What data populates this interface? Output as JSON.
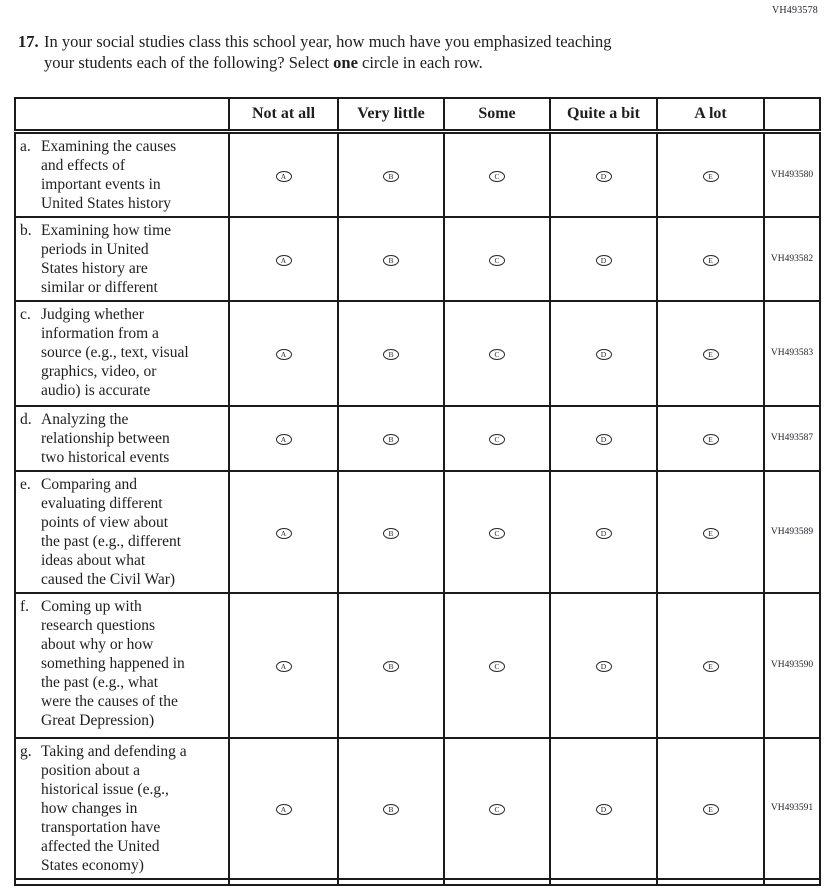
{
  "page": {
    "code_top_right": "VH493578"
  },
  "question": {
    "number": "17.",
    "line1": "In your social studies class this school year, how much have you emphasized teaching",
    "line2_before_bold": "your students each of the following? Select ",
    "bold_word": "one",
    "line2_after_bold": " circle in each row."
  },
  "table": {
    "columns": [
      "Not at all",
      "Very little",
      "Some",
      "Quite a bit",
      "A lot"
    ],
    "options": [
      {
        "label": "Not at all",
        "bubble": "A"
      },
      {
        "label": "Very little",
        "bubble": "B"
      },
      {
        "label": "Some",
        "bubble": "C"
      },
      {
        "label": "Quite a bit",
        "bubble": "D"
      },
      {
        "label": "A lot",
        "bubble": "E"
      }
    ],
    "rows": [
      {
        "letter": "a.",
        "lines": [
          "Examining the causes",
          "and effects of",
          "important events in",
          "United States history"
        ],
        "code": "VH493580"
      },
      {
        "letter": "b.",
        "lines": [
          "Examining how time",
          "periods in United",
          "States history are",
          "similar or different"
        ],
        "code": "VH493582"
      },
      {
        "letter": "c.",
        "lines": [
          "Judging whether",
          "information from a",
          "source (e.g., text, visual",
          "graphics, video, or",
          "audio) is accurate"
        ],
        "code": "VH493583"
      },
      {
        "letter": "d.",
        "lines": [
          "Analyzing the",
          "relationship between",
          "two historical events"
        ],
        "code": "VH493587"
      },
      {
        "letter": "e.",
        "lines": [
          "Comparing and",
          "evaluating different",
          "points of view about",
          "the past (e.g., different",
          "ideas about what",
          "caused the Civil War)"
        ],
        "code": "VH493589"
      },
      {
        "letter": "f.",
        "lines": [
          "Coming up with",
          "research questions",
          "about why or how",
          "something happened in",
          "the past (e.g., what",
          "were the causes of the",
          "Great Depression)"
        ],
        "code": "VH493590"
      },
      {
        "letter": "g.",
        "lines": [
          "Taking and defending a",
          "position about a",
          "historical issue (e.g.,",
          "how changes in",
          "transportation have",
          "affected the United",
          "States economy)"
        ],
        "code": "VH493591"
      }
    ]
  },
  "colors": {
    "ink": "#1b1b1b",
    "background": "#ffffff"
  }
}
